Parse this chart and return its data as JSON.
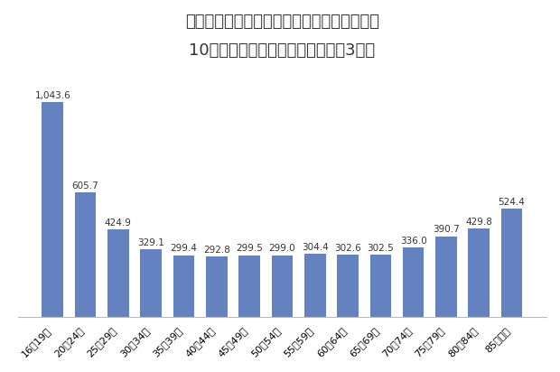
{
  "title_line1": "原付以上運転者（第１当事者）の免許保有者",
  "title_line2": "10万人当たり交通事故件数（令和3年）",
  "categories": [
    "16〜19歳",
    "20〜24歳",
    "25〜29歳",
    "30〜34歳",
    "35〜39歳",
    "40〜44歳",
    "45〜49歳",
    "50〜54歳",
    "55〜59歳",
    "60〜64歳",
    "65〜69歳",
    "70〜74歳",
    "75〜79歳",
    "80〜84歳",
    "85歳以上"
  ],
  "values": [
    1043.6,
    605.7,
    424.9,
    329.1,
    299.4,
    292.8,
    299.5,
    299.0,
    304.4,
    302.6,
    302.5,
    336.0,
    390.7,
    429.8,
    524.4
  ],
  "bar_color": "#6382bf",
  "background_color": "#ffffff",
  "ylim": [
    0,
    1150
  ],
  "label_fontsize": 7.5,
  "title_fontsize": 13,
  "tick_fontsize": 8.0
}
